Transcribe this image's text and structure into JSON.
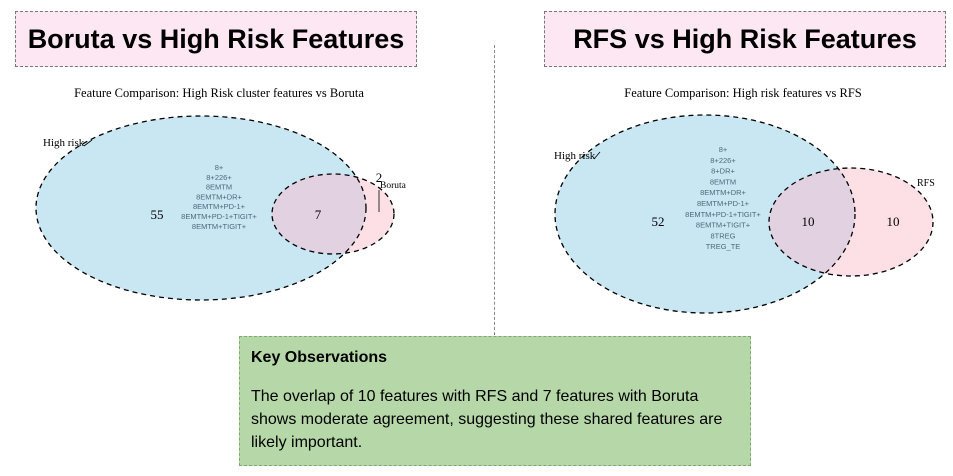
{
  "titles": {
    "left": "Boruta vs High Risk Features",
    "right": "RFS vs High Risk Features"
  },
  "left_diagram": {
    "caption": "Feature Comparison: High Risk cluster features vs Boruta",
    "set_a_label": "High risk",
    "set_b_label": "Boruta",
    "only_a": "55",
    "both": "7",
    "only_b": "2",
    "features": [
      "8+",
      "8+226+",
      "8EMTM",
      "8EMTM+DR+",
      "8EMTM+PD-1+",
      "8EMTM+PD-1+TIGIT+",
      "8EMTM+TIGIT+"
    ],
    "colors": {
      "set_a": "#c9e6f3",
      "set_b": "#fde0e6",
      "overlap": "#e2d2e1"
    }
  },
  "right_diagram": {
    "caption": "Feature Comparison: High risk features vs RFS",
    "set_a_label": "High risk",
    "set_b_label": "RFS",
    "only_a": "52",
    "both": "10",
    "only_b": "10",
    "features": [
      "8+",
      "8+226+",
      "8+DR+",
      "8EMTM",
      "8EMTM+DR+",
      "8EMTM+PD-1+",
      "8EMTM+PD-1+TIGIT+",
      "8EMTM+TIGIT+",
      "8TREG",
      "TREG_TE"
    ],
    "colors": {
      "set_a": "#c9e6f3",
      "set_b": "#fde0e6",
      "overlap": "#e2d2e1"
    }
  },
  "observations": {
    "heading": "Key Observations",
    "text": "The overlap of 10 features with RFS and 7 features with Boruta shows moderate agreement, suggesting these shared features are likely important."
  }
}
